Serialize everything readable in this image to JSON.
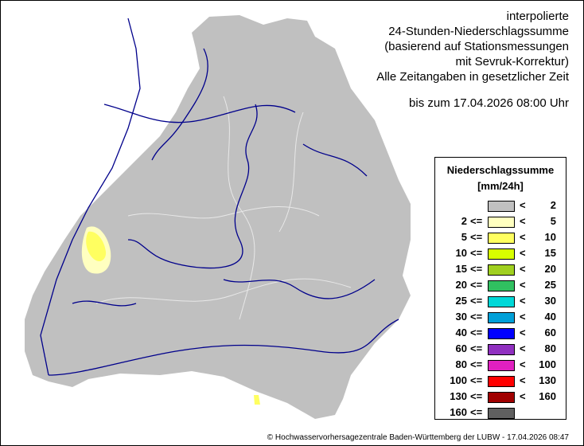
{
  "title": {
    "lines": [
      "interpolierte",
      "24-Stunden-Niederschlagssumme",
      "(basierend auf Stationsmessungen",
      "mit Sevruk-Korrektur)",
      "Alle Zeitangaben in gesetzlicher Zeit"
    ],
    "date": "bis zum 17.04.2026 08:00 Uhr"
  },
  "legend": {
    "heading": "Niederschlagssumme",
    "unit": "[mm/24h]",
    "classes": [
      {
        "lo": "",
        "hi": "2",
        "color": "#c0c0c0"
      },
      {
        "lo": "2",
        "hi": "5",
        "color": "#ffffc0"
      },
      {
        "lo": "5",
        "hi": "10",
        "color": "#ffff60"
      },
      {
        "lo": "10",
        "hi": "15",
        "color": "#d8ff00"
      },
      {
        "lo": "15",
        "hi": "20",
        "color": "#a0d020"
      },
      {
        "lo": "20",
        "hi": "25",
        "color": "#30c060"
      },
      {
        "lo": "25",
        "hi": "30",
        "color": "#00d8d8"
      },
      {
        "lo": "30",
        "hi": "40",
        "color": "#00a0d8"
      },
      {
        "lo": "40",
        "hi": "60",
        "color": "#0000ff"
      },
      {
        "lo": "60",
        "hi": "80",
        "color": "#9030c0"
      },
      {
        "lo": "80",
        "hi": "100",
        "color": "#e020c0"
      },
      {
        "lo": "100",
        "hi": "130",
        "color": "#ff0000"
      },
      {
        "lo": "130",
        "hi": "160",
        "color": "#a00000"
      },
      {
        "lo": "160",
        "hi": "",
        "color": "#606060"
      }
    ]
  },
  "map": {
    "land_color": "#c0c0c0",
    "river_color": "#00008b",
    "border_color": "#e8e8e8",
    "rain_color": "#ffff60",
    "rain_light_color": "#ffffc0"
  },
  "copyright": "© Hochwasservorhersagezentrale Baden-Württemberg der LUBW - 17.04.2026 08:47"
}
